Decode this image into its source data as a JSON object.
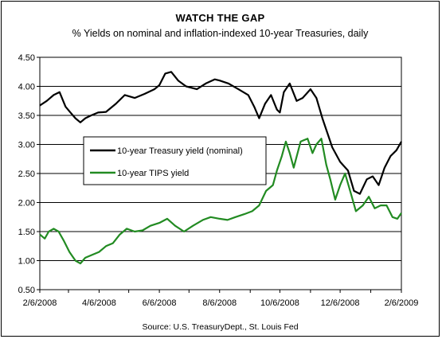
{
  "chart_data": {
    "type": "line",
    "title": "WATCH THE GAP",
    "subtitle": "% Yields on nominal and inflation-indexed 10-year Treasuries, daily",
    "source": "Source: U.S. TreasuryDept., St. Louis Fed",
    "x_start": "2008-02-06",
    "x_end": "2009-02-06",
    "ylim": [
      0.5,
      4.5
    ],
    "y_ticks": [
      0.5,
      1.0,
      1.5,
      2.0,
      2.5,
      3.0,
      3.5,
      4.0,
      4.5
    ],
    "y_tick_labels": [
      "0.50",
      "1.00",
      "1.50",
      "2.00",
      "2.50",
      "3.00",
      "3.50",
      "4.00",
      "4.50"
    ],
    "x_ticks": [
      "2008-02-06",
      "2008-04-06",
      "2008-06-06",
      "2008-08-06",
      "2008-10-06",
      "2008-12-06",
      "2009-02-06"
    ],
    "x_tick_labels": [
      "2/6/2008",
      "4/6/2008",
      "6/6/2008",
      "8/6/2008",
      "10/6/2008",
      "12/6/2008",
      "2/6/2009"
    ],
    "grid": "horizontal",
    "legend_position": "center-left",
    "series": [
      {
        "name": "10-year Treasury yield (nominal)",
        "color": "#000000",
        "points": [
          [
            "2008-02-06",
            3.67
          ],
          [
            "2008-02-13",
            3.75
          ],
          [
            "2008-02-20",
            3.85
          ],
          [
            "2008-02-26",
            3.9
          ],
          [
            "2008-03-03",
            3.65
          ],
          [
            "2008-03-08",
            3.55
          ],
          [
            "2008-03-13",
            3.45
          ],
          [
            "2008-03-18",
            3.38
          ],
          [
            "2008-03-23",
            3.45
          ],
          [
            "2008-03-29",
            3.5
          ],
          [
            "2008-04-05",
            3.55
          ],
          [
            "2008-04-13",
            3.56
          ],
          [
            "2008-04-23",
            3.7
          ],
          [
            "2008-05-02",
            3.85
          ],
          [
            "2008-05-12",
            3.8
          ],
          [
            "2008-05-22",
            3.87
          ],
          [
            "2008-06-01",
            3.95
          ],
          [
            "2008-06-06",
            4.02
          ],
          [
            "2008-06-12",
            4.22
          ],
          [
            "2008-06-18",
            4.25
          ],
          [
            "2008-06-25",
            4.1
          ],
          [
            "2008-07-03",
            4.0
          ],
          [
            "2008-07-14",
            3.95
          ],
          [
            "2008-07-23",
            4.05
          ],
          [
            "2008-08-01",
            4.12
          ],
          [
            "2008-08-06",
            4.1
          ],
          [
            "2008-08-15",
            4.05
          ],
          [
            "2008-08-25",
            3.95
          ],
          [
            "2008-09-04",
            3.85
          ],
          [
            "2008-09-10",
            3.65
          ],
          [
            "2008-09-15",
            3.45
          ],
          [
            "2008-09-21",
            3.7
          ],
          [
            "2008-09-27",
            3.85
          ],
          [
            "2008-10-03",
            3.6
          ],
          [
            "2008-10-06",
            3.55
          ],
          [
            "2008-10-10",
            3.9
          ],
          [
            "2008-10-16",
            4.05
          ],
          [
            "2008-10-23",
            3.75
          ],
          [
            "2008-10-29",
            3.8
          ],
          [
            "2008-11-06",
            3.95
          ],
          [
            "2008-11-12",
            3.8
          ],
          [
            "2008-11-18",
            3.45
          ],
          [
            "2008-11-23",
            3.2
          ],
          [
            "2008-11-28",
            2.95
          ],
          [
            "2008-12-06",
            2.7
          ],
          [
            "2008-12-14",
            2.55
          ],
          [
            "2008-12-20",
            2.2
          ],
          [
            "2008-12-26",
            2.15
          ],
          [
            "2009-01-02",
            2.4
          ],
          [
            "2009-01-08",
            2.45
          ],
          [
            "2009-01-14",
            2.3
          ],
          [
            "2009-01-20",
            2.6
          ],
          [
            "2009-01-26",
            2.8
          ],
          [
            "2009-02-01",
            2.9
          ],
          [
            "2009-02-06",
            3.05
          ]
        ]
      },
      {
        "name": "10-year TIPS yield",
        "color": "#228B22",
        "points": [
          [
            "2008-02-06",
            1.45
          ],
          [
            "2008-02-11",
            1.38
          ],
          [
            "2008-02-15",
            1.5
          ],
          [
            "2008-02-20",
            1.55
          ],
          [
            "2008-02-25",
            1.5
          ],
          [
            "2008-03-01",
            1.35
          ],
          [
            "2008-03-07",
            1.15
          ],
          [
            "2008-03-13",
            1.0
          ],
          [
            "2008-03-18",
            0.95
          ],
          [
            "2008-03-23",
            1.05
          ],
          [
            "2008-03-30",
            1.1
          ],
          [
            "2008-04-06",
            1.15
          ],
          [
            "2008-04-13",
            1.25
          ],
          [
            "2008-04-20",
            1.3
          ],
          [
            "2008-04-27",
            1.45
          ],
          [
            "2008-05-04",
            1.55
          ],
          [
            "2008-05-12",
            1.5
          ],
          [
            "2008-05-20",
            1.52
          ],
          [
            "2008-05-28",
            1.6
          ],
          [
            "2008-06-06",
            1.65
          ],
          [
            "2008-06-14",
            1.72
          ],
          [
            "2008-06-22",
            1.6
          ],
          [
            "2008-07-01",
            1.5
          ],
          [
            "2008-07-10",
            1.6
          ],
          [
            "2008-07-20",
            1.7
          ],
          [
            "2008-07-28",
            1.75
          ],
          [
            "2008-08-06",
            1.72
          ],
          [
            "2008-08-14",
            1.7
          ],
          [
            "2008-08-22",
            1.75
          ],
          [
            "2008-08-31",
            1.8
          ],
          [
            "2008-09-08",
            1.85
          ],
          [
            "2008-09-15",
            1.95
          ],
          [
            "2008-09-22",
            2.2
          ],
          [
            "2008-09-29",
            2.3
          ],
          [
            "2008-10-03",
            2.55
          ],
          [
            "2008-10-08",
            2.8
          ],
          [
            "2008-10-12",
            3.05
          ],
          [
            "2008-10-16",
            2.85
          ],
          [
            "2008-10-20",
            2.6
          ],
          [
            "2008-10-27",
            3.05
          ],
          [
            "2008-11-03",
            3.1
          ],
          [
            "2008-11-08",
            2.85
          ],
          [
            "2008-11-12",
            3.0
          ],
          [
            "2008-11-17",
            3.1
          ],
          [
            "2008-11-22",
            2.65
          ],
          [
            "2008-11-26",
            2.4
          ],
          [
            "2008-12-01",
            2.05
          ],
          [
            "2008-12-06",
            2.3
          ],
          [
            "2008-12-11",
            2.5
          ],
          [
            "2008-12-17",
            2.15
          ],
          [
            "2008-12-22",
            1.85
          ],
          [
            "2008-12-29",
            1.95
          ],
          [
            "2009-01-04",
            2.1
          ],
          [
            "2009-01-10",
            1.9
          ],
          [
            "2009-01-16",
            1.95
          ],
          [
            "2009-01-22",
            1.95
          ],
          [
            "2009-01-28",
            1.75
          ],
          [
            "2009-02-02",
            1.72
          ],
          [
            "2009-02-06",
            1.82
          ]
        ]
      }
    ]
  }
}
